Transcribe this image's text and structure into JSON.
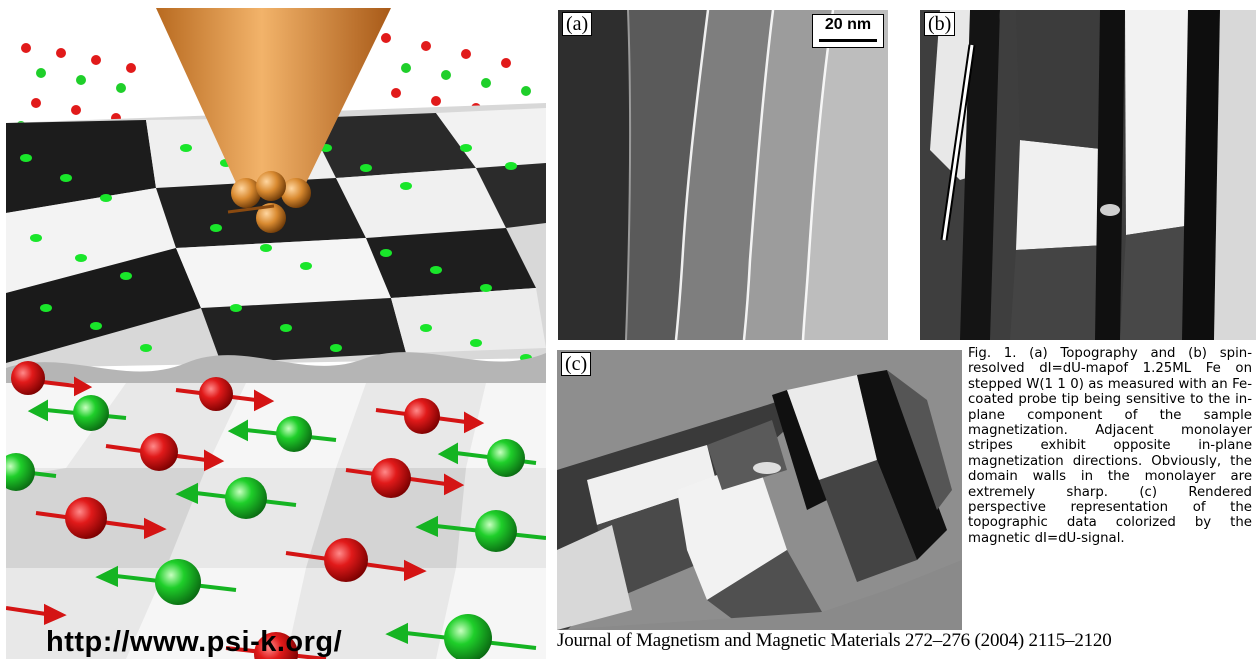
{
  "left_image": {
    "url_text": "http://www.psi-k.org/",
    "atom_colors": {
      "spin_right": "#e11a1a",
      "spin_left": "#1fcf2a",
      "tip": "#e0953e"
    }
  },
  "panels": {
    "a": {
      "label": "(a)",
      "scale_bar": "20 nm"
    },
    "b": {
      "label": "(b)"
    },
    "c": {
      "label": "(c)"
    }
  },
  "caption": "Fig. 1. (a) Topography and (b) spin-resolved dI=dU-mapof 1.25ML Fe on stepped W(1 1 0) as measured with an Fe-coated probe tip being sensitive to the in-plane component of the sample magnetization. Adjacent monolayer stripes exhibit opposite in-plane magnetization directions. Obviously, the domain walls in the monolayer are extremely sharp. (c) Rendered perspective representation of the topographic data colorized by the magnetic dI=dU-signal.",
  "citation": "Journal of Magnetism and Magnetic Materials 272–276 (2004) 2115–2120"
}
